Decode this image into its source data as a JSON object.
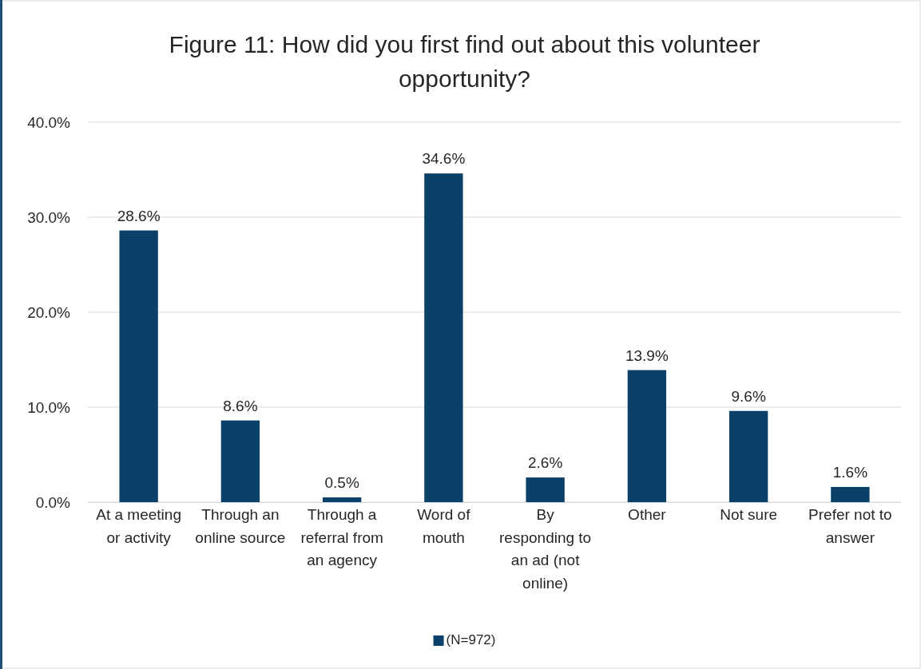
{
  "chart_data": {
    "type": "bar",
    "title": "Figure 11: How did you first find out about this volunteer opportunity?",
    "categories": [
      "At a meeting or activity",
      "Through an online source",
      "Through a referral from an agency",
      "Word of mouth",
      "By responding to an ad (not online)",
      "Other",
      "Not sure",
      "Prefer not to answer"
    ],
    "series": [
      {
        "name": "(N=972)",
        "color": "#0b4168",
        "values": [
          28.6,
          8.6,
          0.5,
          34.6,
          2.6,
          13.9,
          9.6,
          1.6
        ],
        "value_labels": [
          "28.6%",
          "8.6%",
          "0.5%",
          "34.6%",
          "2.6%",
          "13.9%",
          "9.6%",
          "1.6%"
        ]
      }
    ],
    "ylim": [
      0,
      40
    ],
    "yticks": [
      {
        "value": 0,
        "label": "0.0%"
      },
      {
        "value": 10,
        "label": "10.0%"
      },
      {
        "value": 20,
        "label": "20.0%"
      },
      {
        "value": 30,
        "label": "30.0%"
      },
      {
        "value": 40,
        "label": "40.0%"
      }
    ],
    "grid": "y",
    "legend": "bottom"
  }
}
